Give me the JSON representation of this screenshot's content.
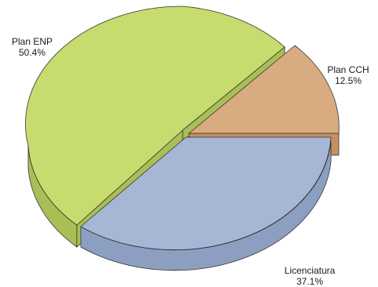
{
  "chart_data": {
    "type": "pie",
    "title": "",
    "slices": [
      {
        "label": "Plan ENP",
        "pct_text": "50.4%",
        "value": 50.4,
        "color": "#c6dc6e",
        "side_color": "#a9bf55"
      },
      {
        "label": "Plan CCH",
        "pct_text": "12.5%",
        "value": 12.5,
        "color": "#d9ab80",
        "side_color": "#c48f63"
      },
      {
        "label": "Licenciatura",
        "pct_text": "37.1%",
        "value": 37.1,
        "color": "#a6b7d6",
        "side_color": "#8d9fc1"
      }
    ],
    "style": "3d-exploded"
  }
}
